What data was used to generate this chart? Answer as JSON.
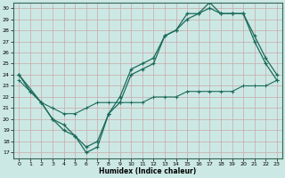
{
  "xlabel": "Humidex (Indice chaleur)",
  "background_color": "#cce8e4",
  "grid_color": "#c8a8a8",
  "line_color": "#1a6b5a",
  "xlim": [
    -0.5,
    23.5
  ],
  "ylim": [
    16.5,
    30.5
  ],
  "yticks": [
    17,
    18,
    19,
    20,
    21,
    22,
    23,
    24,
    25,
    26,
    27,
    28,
    29,
    30
  ],
  "xticks": [
    0,
    1,
    2,
    3,
    4,
    5,
    6,
    7,
    8,
    9,
    10,
    11,
    12,
    13,
    14,
    15,
    16,
    17,
    18,
    19,
    20,
    21,
    22,
    23
  ],
  "line1_x": [
    0,
    1,
    2,
    3,
    4,
    5,
    6,
    7,
    8,
    9,
    10,
    11,
    12,
    13,
    14,
    15,
    16,
    17,
    18,
    19,
    20,
    21,
    22,
    23
  ],
  "line1_y": [
    24.0,
    22.5,
    21.5,
    20.0,
    19.0,
    18.5,
    17.0,
    17.5,
    20.5,
    22.0,
    24.5,
    25.0,
    25.5,
    27.5,
    28.0,
    29.5,
    29.5,
    30.5,
    29.5,
    29.5,
    29.5,
    27.0,
    25.0,
    23.5
  ],
  "line2_x": [
    0,
    2,
    3,
    4,
    5,
    6,
    7,
    8,
    9,
    10,
    11,
    12,
    13,
    14,
    15,
    16,
    17,
    18,
    19,
    20,
    21,
    22,
    23
  ],
  "line2_y": [
    24.0,
    21.5,
    20.0,
    19.5,
    18.5,
    17.5,
    18.0,
    20.5,
    21.5,
    24.0,
    24.5,
    25.0,
    27.5,
    28.0,
    29.0,
    29.5,
    30.0,
    29.5,
    29.5,
    29.5,
    27.5,
    25.5,
    24.0
  ],
  "line3_x": [
    0,
    1,
    2,
    3,
    4,
    5,
    6,
    7,
    8,
    9,
    10,
    11,
    12,
    13,
    14,
    15,
    16,
    17,
    18,
    19,
    20,
    21,
    22,
    23
  ],
  "line3_y": [
    23.5,
    22.5,
    21.5,
    21.0,
    20.5,
    20.5,
    21.0,
    21.5,
    21.5,
    21.5,
    21.5,
    21.5,
    22.0,
    22.0,
    22.0,
    22.5,
    22.5,
    22.5,
    22.5,
    22.5,
    23.0,
    23.0,
    23.0,
    23.5
  ]
}
